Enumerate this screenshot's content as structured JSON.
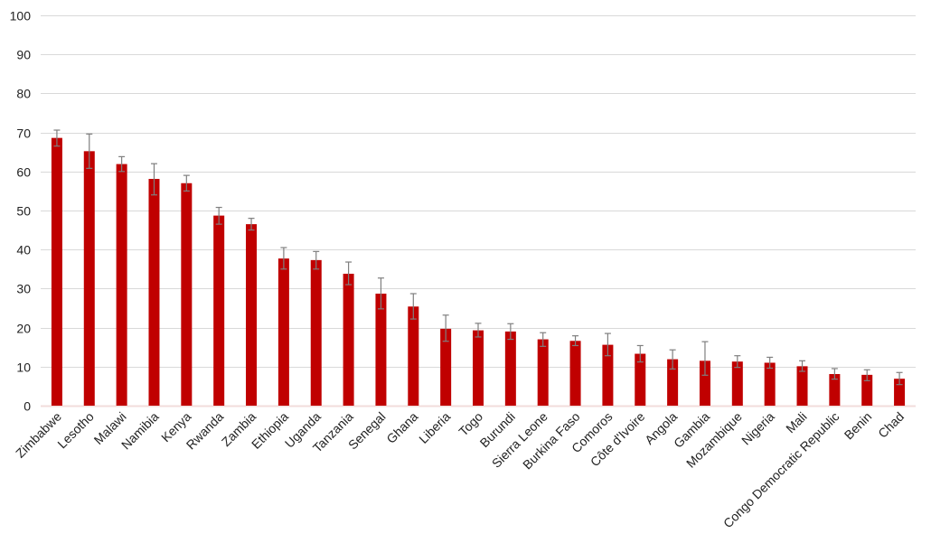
{
  "chart_data": {
    "type": "bar",
    "title": "",
    "xlabel": "",
    "ylabel": "",
    "ylim": [
      0,
      100
    ],
    "yticks": [
      0,
      10,
      20,
      30,
      40,
      50,
      60,
      70,
      80,
      90,
      100
    ],
    "grid": true,
    "bar_color": "#c00000",
    "error_color": "#7f7f7f",
    "categories": [
      "Zimbabwe",
      "Lesotho",
      "Malawi",
      "Namibia",
      "Kenya",
      "Rwanda",
      "Zambia",
      "Ethiopia",
      "Uganda",
      "Tanzania",
      "Senegal",
      "Ghana",
      "Liberia",
      "Togo",
      "Burundi",
      "Sierra Leone",
      "Burkina Faso",
      "Comoros",
      "Côte d'Ivoire",
      "Angola",
      "Gambia",
      "Mozambique",
      "Nigeria",
      "Mali",
      "Congo Democratic Republic",
      "Benin",
      "Chad"
    ],
    "values": [
      68.6,
      65.2,
      61.9,
      58.1,
      57.0,
      48.7,
      46.5,
      37.7,
      37.3,
      33.8,
      28.7,
      25.4,
      19.7,
      19.3,
      19.0,
      17.0,
      16.6,
      15.6,
      13.3,
      11.9,
      11.5,
      11.3,
      11.0,
      10.1,
      8.1,
      7.9,
      6.9
    ],
    "error_low": [
      66.5,
      60.8,
      60.0,
      54.0,
      55.0,
      46.5,
      45.0,
      35.0,
      35.0,
      31.0,
      24.8,
      22.2,
      16.5,
      17.6,
      17.0,
      15.2,
      15.4,
      12.8,
      11.2,
      9.4,
      7.8,
      9.8,
      9.6,
      8.8,
      6.8,
      6.4,
      5.4
    ],
    "error_high": [
      70.6,
      69.6,
      63.8,
      62.0,
      59.0,
      50.8,
      48.0,
      40.5,
      39.5,
      36.8,
      32.7,
      28.7,
      23.2,
      21.1,
      21.0,
      18.7,
      17.9,
      18.5,
      15.4,
      14.3,
      16.4,
      12.8,
      12.4,
      11.5,
      9.5,
      9.2,
      8.5
    ]
  }
}
